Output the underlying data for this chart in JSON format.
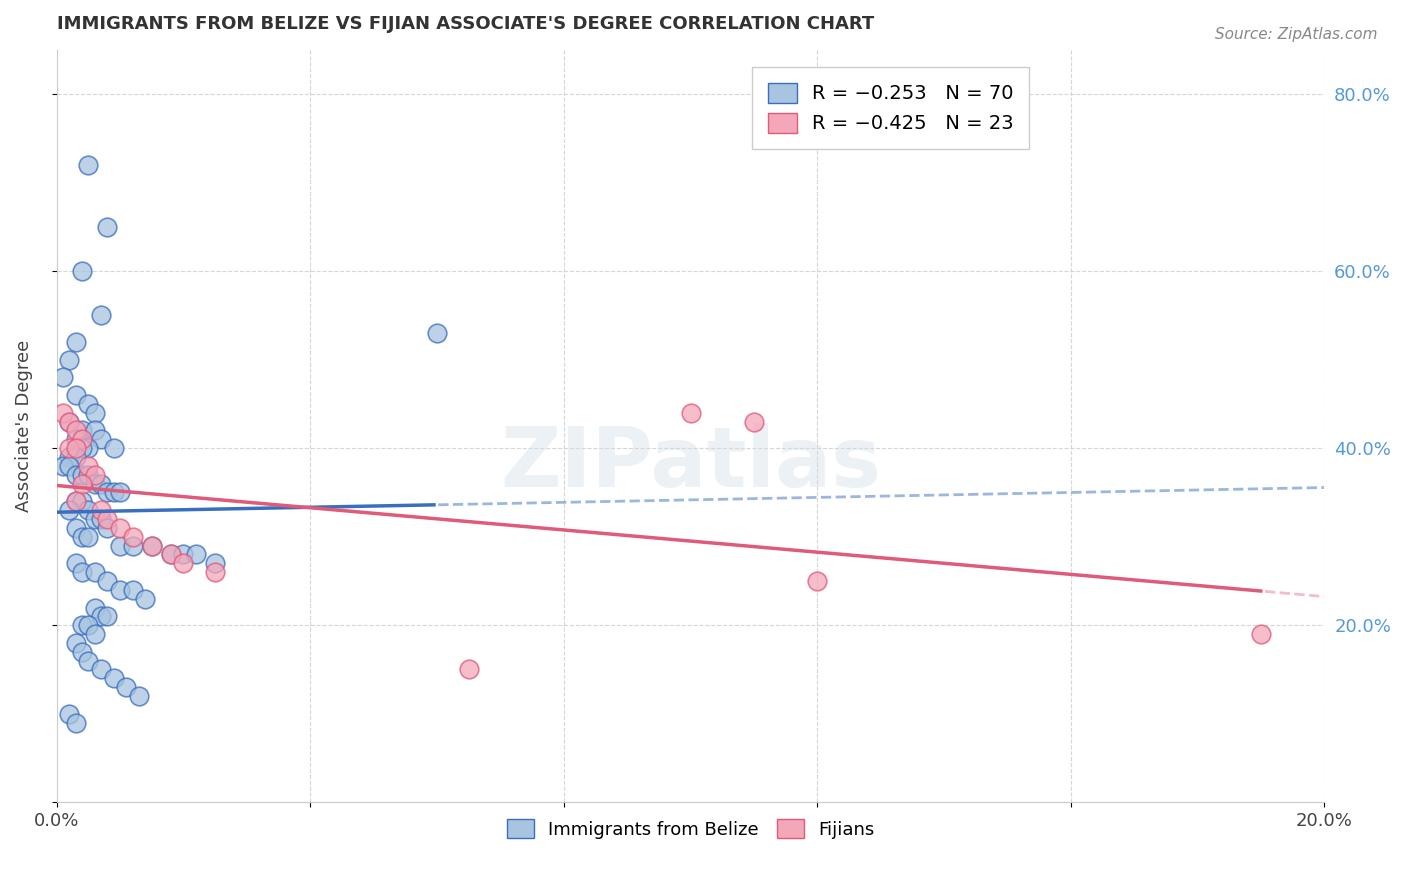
{
  "title": "IMMIGRANTS FROM BELIZE VS FIJIAN ASSOCIATE'S DEGREE CORRELATION CHART",
  "source": "Source: ZipAtlas.com",
  "ylabel": "Associate's Degree",
  "xmin": 0.0,
  "xmax": 0.2,
  "ymin": 0.0,
  "ymax": 0.85,
  "legend_r1": "R = −0.253",
  "legend_n1": "N = 70",
  "legend_r2": "R = −0.425",
  "legend_n2": "N = 23",
  "color_belize": "#a8c4e0",
  "color_fijian": "#f4a7b9",
  "color_belize_line": "#3a6fbf",
  "color_fijian_line": "#e05a7a",
  "watermark": "ZIPatlas",
  "belize_x": [
    0.005,
    0.008,
    0.004,
    0.007,
    0.003,
    0.002,
    0.001,
    0.003,
    0.005,
    0.006,
    0.002,
    0.004,
    0.006,
    0.003,
    0.007,
    0.009,
    0.005,
    0.004,
    0.002,
    0.003,
    0.001,
    0.002,
    0.003,
    0.004,
    0.005,
    0.006,
    0.007,
    0.008,
    0.009,
    0.01,
    0.003,
    0.004,
    0.005,
    0.002,
    0.006,
    0.007,
    0.008,
    0.003,
    0.004,
    0.005,
    0.01,
    0.012,
    0.015,
    0.018,
    0.02,
    0.022,
    0.025,
    0.003,
    0.004,
    0.006,
    0.008,
    0.01,
    0.012,
    0.014,
    0.006,
    0.007,
    0.008,
    0.004,
    0.005,
    0.006,
    0.003,
    0.004,
    0.005,
    0.007,
    0.009,
    0.011,
    0.013,
    0.06,
    0.002,
    0.003
  ],
  "belize_y": [
    0.72,
    0.65,
    0.6,
    0.55,
    0.52,
    0.5,
    0.48,
    0.46,
    0.45,
    0.44,
    0.43,
    0.42,
    0.42,
    0.41,
    0.41,
    0.4,
    0.4,
    0.4,
    0.39,
    0.39,
    0.38,
    0.38,
    0.37,
    0.37,
    0.37,
    0.36,
    0.36,
    0.35,
    0.35,
    0.35,
    0.34,
    0.34,
    0.33,
    0.33,
    0.32,
    0.32,
    0.31,
    0.31,
    0.3,
    0.3,
    0.29,
    0.29,
    0.29,
    0.28,
    0.28,
    0.28,
    0.27,
    0.27,
    0.26,
    0.26,
    0.25,
    0.24,
    0.24,
    0.23,
    0.22,
    0.21,
    0.21,
    0.2,
    0.2,
    0.19,
    0.18,
    0.17,
    0.16,
    0.15,
    0.14,
    0.13,
    0.12,
    0.53,
    0.1,
    0.09
  ],
  "fijian_x": [
    0.001,
    0.002,
    0.003,
    0.004,
    0.002,
    0.003,
    0.005,
    0.006,
    0.004,
    0.003,
    0.007,
    0.008,
    0.01,
    0.012,
    0.015,
    0.018,
    0.02,
    0.025,
    0.1,
    0.11,
    0.12,
    0.19,
    0.065
  ],
  "fijian_y": [
    0.44,
    0.43,
    0.42,
    0.41,
    0.4,
    0.4,
    0.38,
    0.37,
    0.36,
    0.34,
    0.33,
    0.32,
    0.31,
    0.3,
    0.29,
    0.28,
    0.27,
    0.26,
    0.44,
    0.43,
    0.25,
    0.19,
    0.15
  ]
}
